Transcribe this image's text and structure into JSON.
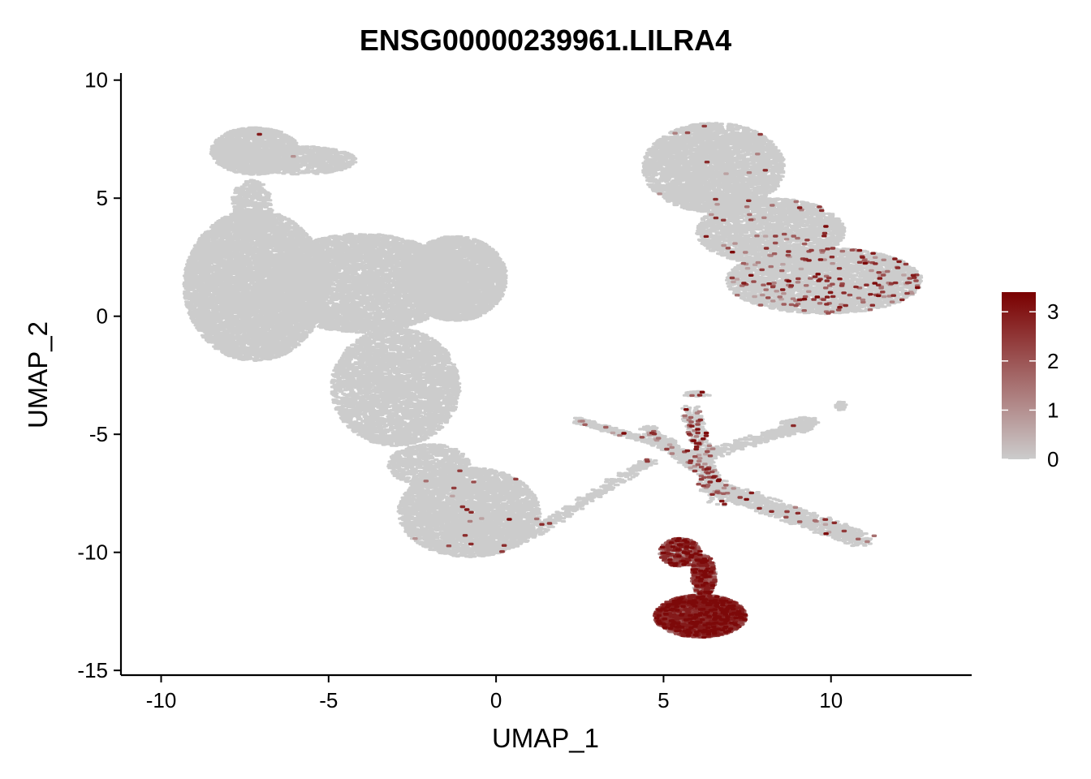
{
  "chart_data": {
    "type": "scatter",
    "title": "ENSG00000239961.LILRA4",
    "xlabel": "UMAP_1",
    "ylabel": "UMAP_2",
    "xlim": [
      -11.2,
      14.2
    ],
    "ylim": [
      -15.2,
      10.3
    ],
    "x_ticks": [
      -10,
      -5,
      0,
      5,
      10
    ],
    "y_ticks": [
      10,
      5,
      0,
      -5,
      -10,
      -15
    ],
    "x_tick_labels": [
      "-10",
      "-5",
      "0",
      "5",
      "10"
    ],
    "y_tick_labels": [
      "10",
      "5",
      "0",
      "-5",
      "-10",
      "-15"
    ],
    "colorbar": {
      "min": 0,
      "max": 3.4,
      "ticks": [
        0,
        1,
        2,
        3
      ],
      "tick_labels": [
        "0",
        "1",
        "2",
        "3"
      ],
      "low_color": "#CCCCCC",
      "high_color": "#7A0000",
      "placement": "right"
    },
    "point_color_zero": "#CCCCCC",
    "clusters": [
      {
        "shape": "ellipse",
        "cx": -7.2,
        "cy": 7.0,
        "rx": 1.3,
        "ry": 1.0,
        "n": 1400,
        "expr_frac": 0.002
      },
      {
        "shape": "ellipse",
        "cx": -5.8,
        "cy": 6.6,
        "rx": 1.6,
        "ry": 0.6,
        "n": 700,
        "expr_frac": 0.0
      },
      {
        "shape": "ellipse",
        "cx": -7.3,
        "cy": 4.6,
        "rx": 0.6,
        "ry": 1.2,
        "n": 400,
        "expr_frac": 0.0
      },
      {
        "shape": "ellipse",
        "cx": -7.2,
        "cy": 1.3,
        "rx": 2.1,
        "ry": 3.2,
        "n": 6500,
        "expr_frac": 0.0
      },
      {
        "shape": "ellipse",
        "cx": -4.0,
        "cy": 1.4,
        "rx": 2.8,
        "ry": 2.1,
        "n": 5000,
        "expr_frac": 0.0
      },
      {
        "shape": "ellipse",
        "cx": -1.2,
        "cy": 1.6,
        "rx": 1.5,
        "ry": 1.8,
        "n": 3000,
        "expr_frac": 0.0
      },
      {
        "shape": "ellipse",
        "cx": -3.0,
        "cy": -3.0,
        "rx": 1.9,
        "ry": 2.5,
        "n": 3500,
        "expr_frac": 0.0
      },
      {
        "shape": "ellipse",
        "cx": -2.0,
        "cy": -6.3,
        "rx": 1.2,
        "ry": 0.9,
        "n": 700,
        "expr_frac": 0.0
      },
      {
        "shape": "ellipse",
        "cx": -0.8,
        "cy": -8.3,
        "rx": 2.1,
        "ry": 1.9,
        "n": 4200,
        "expr_frac": 0.006
      },
      {
        "shape": "ellipse",
        "cx": 6.5,
        "cy": 6.3,
        "rx": 2.1,
        "ry": 1.9,
        "n": 4200,
        "expr_frac": 0.003
      },
      {
        "shape": "ellipse",
        "cx": 8.2,
        "cy": 3.6,
        "rx": 2.2,
        "ry": 1.4,
        "n": 2200,
        "expr_frac": 0.02
      },
      {
        "shape": "ellipse",
        "cx": 9.8,
        "cy": 1.5,
        "rx": 2.9,
        "ry": 1.4,
        "n": 4200,
        "expr_frac": 0.045
      },
      {
        "shape": "line",
        "x1": 0.5,
        "y1": -9.7,
        "x2": 4.6,
        "y2": -6.1,
        "w": 0.18,
        "n": 350,
        "expr_frac": 0.01
      },
      {
        "shape": "line",
        "x1": 2.4,
        "y1": -4.4,
        "x2": 6.0,
        "y2": -5.9,
        "w": 0.12,
        "n": 300,
        "expr_frac": 0.03
      },
      {
        "shape": "line",
        "x1": 4.5,
        "y1": -4.8,
        "x2": 6.4,
        "y2": -6.8,
        "w": 0.2,
        "n": 350,
        "expr_frac": 0.06
      },
      {
        "shape": "line",
        "x1": 6.0,
        "y1": -6.0,
        "x2": 9.5,
        "y2": -4.5,
        "w": 0.2,
        "n": 300,
        "expr_frac": 0.01
      },
      {
        "shape": "line",
        "x1": 6.3,
        "y1": -7.1,
        "x2": 11.0,
        "y2": -9.5,
        "w": 0.3,
        "n": 900,
        "expr_frac": 0.02
      },
      {
        "shape": "line",
        "x1": 5.8,
        "y1": -4.0,
        "x2": 6.6,
        "y2": -7.8,
        "w": 0.25,
        "n": 400,
        "expr_frac": 0.15
      },
      {
        "shape": "ellipse",
        "cx": 9.0,
        "cy": -4.6,
        "rx": 0.5,
        "ry": 0.35,
        "n": 120,
        "expr_frac": 0.0
      },
      {
        "shape": "ellipse",
        "cx": 10.3,
        "cy": -3.8,
        "rx": 0.15,
        "ry": 0.2,
        "n": 30,
        "expr_frac": 0.0
      },
      {
        "shape": "ellipse",
        "cx": 6.0,
        "cy": -3.3,
        "rx": 0.4,
        "ry": 0.12,
        "n": 40,
        "expr_frac": 0.05
      },
      {
        "shape": "ellipse",
        "cx": 5.5,
        "cy": -10.0,
        "rx": 0.6,
        "ry": 0.6,
        "n": 450,
        "expr_frac": 0.7
      },
      {
        "shape": "ellipse",
        "cx": 6.2,
        "cy": -11.0,
        "rx": 0.35,
        "ry": 0.9,
        "n": 450,
        "expr_frac": 0.8
      },
      {
        "shape": "ellipse",
        "cx": 6.1,
        "cy": -12.7,
        "rx": 1.35,
        "ry": 0.9,
        "n": 4200,
        "expr_frac": 0.92
      }
    ]
  }
}
